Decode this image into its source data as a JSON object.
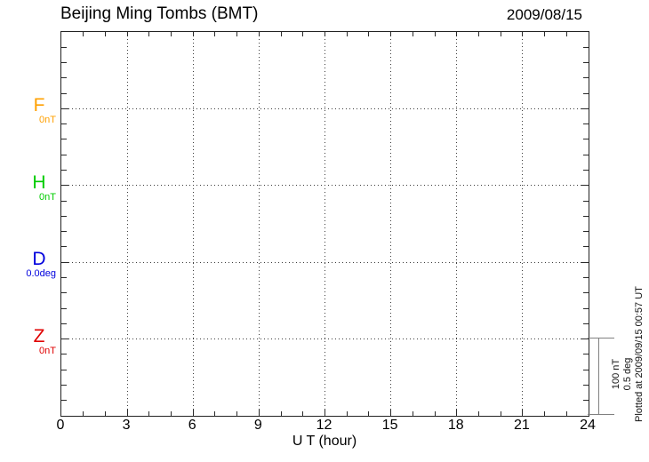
{
  "chart_data": {
    "type": "line",
    "title": "Beijing Ming Tombs (BMT)",
    "date_observed": "2009/08/15",
    "xlabel": "U T (hour)",
    "xlim": [
      0,
      24
    ],
    "xticks": [
      0,
      3,
      6,
      9,
      12,
      15,
      18,
      21,
      24
    ],
    "x_minor_tick_hours": 1,
    "grid": "dotted",
    "grid_hours": [
      3,
      6,
      9,
      12,
      15,
      18,
      21
    ],
    "series": [
      {
        "name": "F",
        "unit": "nT",
        "baseline_label": "0nT",
        "color": "#FFA000",
        "values": []
      },
      {
        "name": "H",
        "unit": "nT",
        "baseline_label": "0nT",
        "color": "#00CC00",
        "values": []
      },
      {
        "name": "D",
        "unit": "deg",
        "baseline_label": "0.0deg",
        "color": "#0000DD",
        "values": []
      },
      {
        "name": "Z",
        "unit": "nT",
        "baseline_label": "0nT",
        "color": "#E00000",
        "values": []
      }
    ],
    "scale_bar": {
      "labels": [
        "100 nT",
        "0.5 deg"
      ]
    },
    "annotation": "Plotted at 2009/09/15 00:57 UT"
  }
}
